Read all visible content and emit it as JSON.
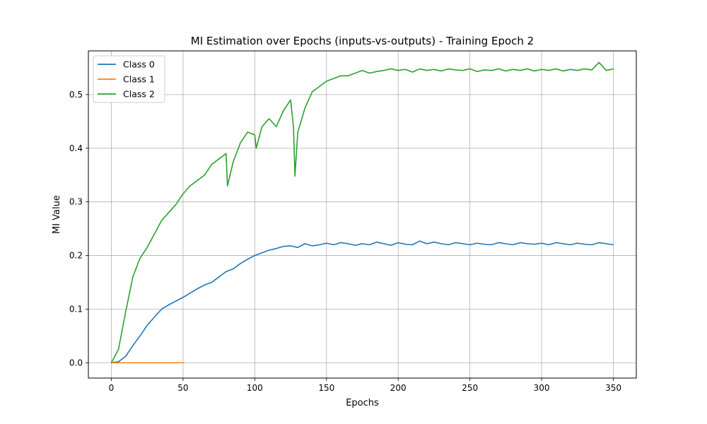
{
  "chart_data": {
    "type": "line",
    "title": "MI Estimation over Epochs (inputs-vs-outputs) - Training Epoch 2",
    "xlabel": "Epochs",
    "ylabel": "MI Value",
    "xlim": [
      -16,
      366
    ],
    "ylim": [
      -0.0285,
      0.5815
    ],
    "xticks": [
      0,
      50,
      100,
      150,
      200,
      250,
      300,
      350
    ],
    "xtick_labels": [
      "0",
      "50",
      "100",
      "150",
      "200",
      "250",
      "300",
      "350"
    ],
    "yticks": [
      0.0,
      0.1,
      0.2,
      0.3,
      0.4,
      0.5
    ],
    "ytick_labels": [
      "0.0",
      "0.1",
      "0.2",
      "0.3",
      "0.4",
      "0.5"
    ],
    "grid": true,
    "legend_position": "top-left",
    "colors": {
      "Class 0": "#1f77b4",
      "Class 1": "#ff7f0e",
      "Class 2": "#2ca02c"
    },
    "series": [
      {
        "name": "Class 0",
        "x": [
          0,
          5,
          10,
          15,
          20,
          25,
          30,
          35,
          40,
          45,
          50,
          55,
          60,
          65,
          70,
          75,
          80,
          85,
          90,
          95,
          100,
          105,
          110,
          115,
          120,
          125,
          130,
          135,
          140,
          145,
          150,
          155,
          160,
          165,
          170,
          175,
          180,
          185,
          190,
          195,
          200,
          205,
          210,
          215,
          220,
          225,
          230,
          235,
          240,
          245,
          250,
          255,
          260,
          265,
          270,
          275,
          280,
          285,
          290,
          295,
          300,
          305,
          310,
          315,
          320,
          325,
          330,
          335,
          340,
          345,
          350
        ],
        "values": [
          0.0,
          0.002,
          0.012,
          0.032,
          0.05,
          0.07,
          0.085,
          0.1,
          0.108,
          0.115,
          0.122,
          0.13,
          0.138,
          0.145,
          0.15,
          0.16,
          0.17,
          0.175,
          0.185,
          0.193,
          0.2,
          0.205,
          0.21,
          0.213,
          0.217,
          0.218,
          0.215,
          0.222,
          0.218,
          0.22,
          0.223,
          0.22,
          0.224,
          0.222,
          0.219,
          0.222,
          0.22,
          0.225,
          0.222,
          0.219,
          0.224,
          0.221,
          0.22,
          0.227,
          0.222,
          0.225,
          0.222,
          0.22,
          0.224,
          0.222,
          0.22,
          0.223,
          0.221,
          0.22,
          0.224,
          0.222,
          0.22,
          0.224,
          0.222,
          0.221,
          0.223,
          0.22,
          0.224,
          0.222,
          0.22,
          0.223,
          0.221,
          0.22,
          0.224,
          0.222,
          0.22
        ]
      },
      {
        "name": "Class 1",
        "x": [
          0,
          10,
          20,
          30,
          40,
          51
        ],
        "values": [
          0.0,
          0.0,
          0.0,
          0.0,
          0.0,
          0.0
        ]
      },
      {
        "name": "Class 2",
        "x": [
          0,
          5,
          10,
          15,
          20,
          25,
          30,
          35,
          40,
          45,
          50,
          55,
          60,
          65,
          70,
          75,
          80,
          81,
          85,
          90,
          95,
          100,
          101,
          105,
          110,
          115,
          120,
          125,
          127,
          128,
          130,
          135,
          140,
          145,
          150,
          155,
          160,
          165,
          170,
          175,
          180,
          185,
          190,
          195,
          200,
          205,
          210,
          215,
          220,
          225,
          230,
          235,
          240,
          245,
          250,
          255,
          260,
          265,
          270,
          275,
          280,
          285,
          290,
          295,
          300,
          305,
          310,
          315,
          320,
          325,
          330,
          335,
          340,
          345,
          350
        ],
        "values": [
          0.0,
          0.025,
          0.095,
          0.16,
          0.195,
          0.215,
          0.24,
          0.265,
          0.28,
          0.295,
          0.315,
          0.33,
          0.34,
          0.35,
          0.37,
          0.38,
          0.39,
          0.33,
          0.375,
          0.41,
          0.43,
          0.425,
          0.4,
          0.44,
          0.455,
          0.44,
          0.47,
          0.49,
          0.44,
          0.348,
          0.43,
          0.475,
          0.505,
          0.515,
          0.525,
          0.53,
          0.535,
          0.535,
          0.54,
          0.545,
          0.54,
          0.543,
          0.545,
          0.548,
          0.545,
          0.547,
          0.542,
          0.548,
          0.545,
          0.547,
          0.544,
          0.548,
          0.546,
          0.545,
          0.548,
          0.543,
          0.546,
          0.545,
          0.548,
          0.544,
          0.547,
          0.545,
          0.548,
          0.544,
          0.547,
          0.545,
          0.548,
          0.544,
          0.547,
          0.545,
          0.548,
          0.546,
          0.56,
          0.545,
          0.548
        ]
      }
    ]
  }
}
